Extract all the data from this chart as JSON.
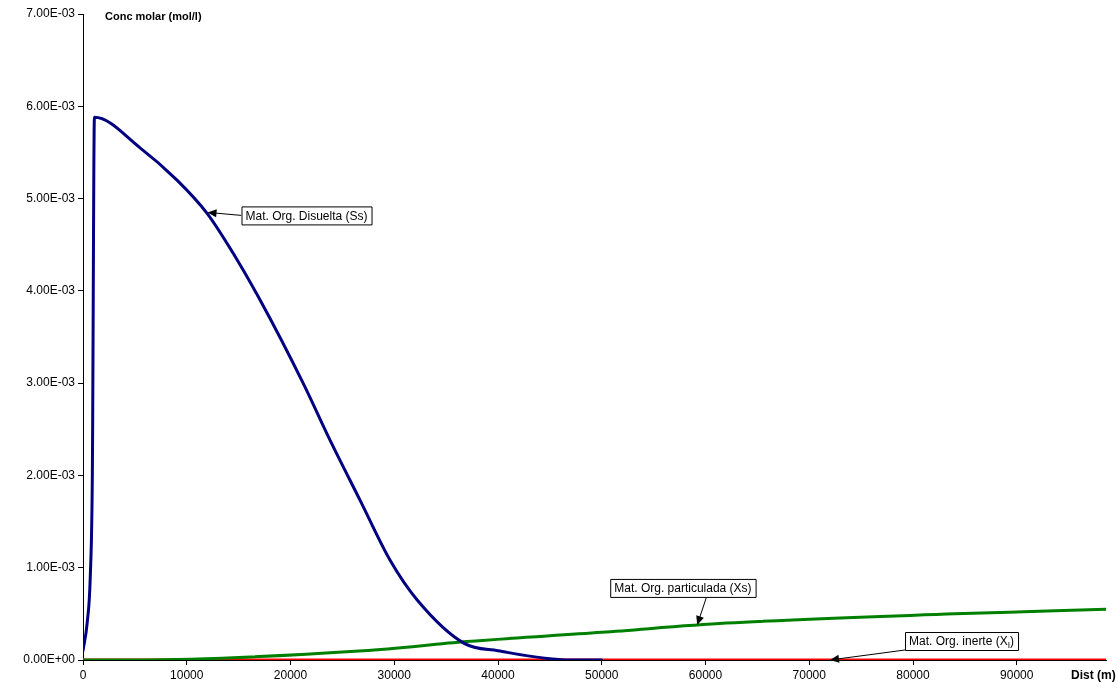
{
  "chart_data": {
    "type": "line",
    "ylabel": "Conc molar (mol/l)",
    "xlabel": "Dist (m)",
    "xlim": [
      0,
      98600
    ],
    "xticks": [
      0,
      10000,
      20000,
      30000,
      40000,
      50000,
      60000,
      70000,
      80000,
      90000
    ],
    "ylim": [
      0,
      0.007
    ],
    "yticks": [
      {
        "value": 0,
        "label": "0.00E+00"
      },
      {
        "value": 0.001,
        "label": "1.00E-03"
      },
      {
        "value": 0.002,
        "label": "2.00E-03"
      },
      {
        "value": 0.003,
        "label": "3.00E-03"
      },
      {
        "value": 0.004,
        "label": "4.00E-03"
      },
      {
        "value": 0.005,
        "label": "5.00E-03"
      },
      {
        "value": 0.006,
        "label": "6.00E-03"
      },
      {
        "value": 0.007,
        "label": "7.00E-03"
      }
    ],
    "grid": false,
    "legend": false,
    "marker": "none",
    "line_style": "solid",
    "series": [
      {
        "color": "#000080",
        "x": [
          0,
          400,
          700,
          900,
          1100,
          5500,
          9060,
          11960,
          14460,
          17070,
          21215,
          23820,
          26710,
          29600,
          32210,
          36740,
          40000,
          47000,
          50000
        ],
        "values": [
          0.0001,
          0.0004,
          0.0009,
          0.002,
          0.00588,
          0.00555,
          0.0052,
          0.00484,
          0.00441,
          0.0039,
          0.003,
          0.00238,
          0.00173,
          0.00108,
          0.00065,
          0.00018,
          0.0001,
          0,
          0
        ]
      },
      {
        "color": "#008000",
        "x": [
          0,
          5000,
          27000,
          37000,
          50000,
          62000,
          84000,
          98600
        ],
        "values": [
          0,
          0,
          0.0001,
          0.0002,
          0.0003,
          0.0004,
          0.0005,
          0.00055
        ]
      },
      {
        "color": "#ff0000",
        "x": [
          0,
          98600
        ],
        "values": [
          0,
          0
        ]
      }
    ],
    "annotations": [
      {
        "text": "Mat. Org. Disuelta (Ss)",
        "x": 12000,
        "y": 0.00485
      },
      {
        "text": "Mat. Org. particulada (Xs)",
        "x": 59200,
        "y": 0.00038
      },
      {
        "text": "Mat. Org. inerte (X$_{I}$)",
        "x": 72000,
        "y": 0
      }
    ]
  }
}
